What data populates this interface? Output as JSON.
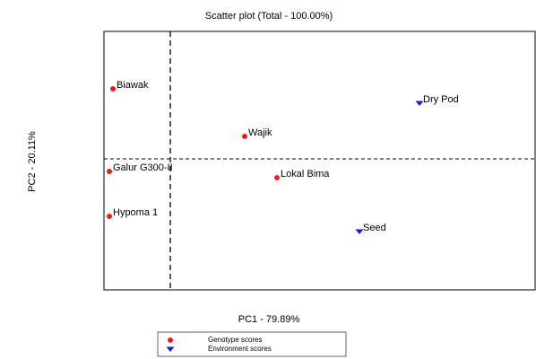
{
  "chart_data": {
    "type": "scatter",
    "title": "Scatter plot (Total - 100.00%)",
    "x_label": "PC1 - 79.89%",
    "y_label": "PC2 - 20.11%",
    "xlim": [
      -7.4,
      40.8
    ],
    "ylim": [
      -14.6,
      14.2
    ],
    "vlines": [
      0
    ],
    "hlines": [
      0
    ],
    "series": [
      {
        "name": "Genotype scores",
        "color": "#e8201c",
        "marker": "circle",
        "labels": [
          "Biawak",
          "Wajik",
          "Galur G300-II",
          "Lokal Bima",
          "Hypoma 1"
        ],
        "x": [
          -6.4,
          8.3,
          -6.8,
          11.9,
          -6.8
        ],
        "values": [
          7.8,
          2.5,
          -1.4,
          -2.1,
          -6.4
        ]
      },
      {
        "name": "Environment scores",
        "color": "#1a1ad6",
        "marker": "triangle",
        "labels": [
          "Dry Pod",
          "Seed"
        ],
        "x": [
          27.8,
          21.1
        ],
        "values": [
          6.2,
          -8.1
        ]
      }
    ]
  }
}
